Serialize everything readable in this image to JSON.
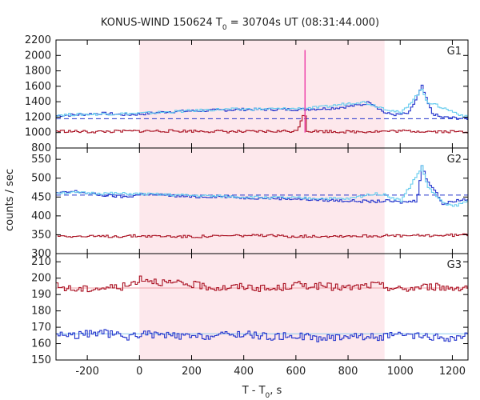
{
  "chart_data": {
    "type": "line",
    "title_main": "KONUS-WIND 150624 T",
    "title_sub": "0",
    "title_rest": " = 30704s UT (08:31:44.000)",
    "xlabel_main": "T - T",
    "xlabel_sub": "0",
    "xlabel_rest": ", s",
    "ylabel": "counts / sec",
    "xlim": [
      -320,
      1260
    ],
    "xticks": [
      -200,
      0,
      200,
      400,
      600,
      800,
      1000,
      1200
    ],
    "xtick_labels": [
      "-200",
      "0",
      "200",
      "400",
      "600",
      "800",
      "1000",
      "1200"
    ],
    "shaded_interval": [
      0,
      940
    ],
    "panels": [
      {
        "name": "G1",
        "ylim": [
          800,
          2200
        ],
        "yticks": [
          800,
          1000,
          1200,
          1400,
          1600,
          1800,
          2000,
          2200
        ],
        "ytick_labels": [
          "800",
          "1000",
          "1200",
          "1400",
          "1600",
          "1800",
          "2000",
          "2200"
        ],
        "background_level": 1180,
        "series": [
          {
            "role": "total",
            "color": "#2233cc",
            "x": [
              -320,
              -250,
              -150,
              -50,
              0,
              100,
              200,
              300,
              400,
              500,
              600,
              700,
              750,
              800,
              850,
              880,
              900,
              940,
              980,
              1030,
              1060,
              1080,
              1100,
              1120,
              1150,
              1200,
              1260
            ],
            "y": [
              1220,
              1230,
              1250,
              1230,
              1240,
              1270,
              1280,
              1290,
              1300,
              1300,
              1300,
              1310,
              1320,
              1340,
              1360,
              1400,
              1350,
              1250,
              1230,
              1250,
              1450,
              1600,
              1400,
              1250,
              1200,
              1190,
              1180
            ]
          },
          {
            "role": "hard",
            "color": "#66ccee",
            "x": [
              -320,
              0,
              300,
              600,
              700,
              800,
              850,
              900,
              1000,
              1080,
              1100,
              1260
            ],
            "y": [
              1230,
              1250,
              1300,
              1310,
              1330,
              1380,
              1400,
              1350,
              1250,
              1560,
              1400,
              1190
            ]
          },
          {
            "role": "soft",
            "color": "#aa1122",
            "x": [
              -320,
              -200,
              0,
              200,
              400,
              600,
              630,
              640,
              800,
              1000,
              1260
            ],
            "y": [
              1020,
              1010,
              1020,
              1020,
              1010,
              1020,
              1280,
              1020,
              1010,
              1020,
              1010
            ]
          },
          {
            "role": "spike",
            "color": "#ee44aa",
            "x": [
              635,
              635
            ],
            "y": [
              1000,
              2070
            ]
          }
        ]
      },
      {
        "name": "G2",
        "ylim": [
          300,
          580
        ],
        "yticks": [
          300,
          350,
          400,
          450,
          500,
          550
        ],
        "ytick_labels": [
          "300",
          "350",
          "400",
          "450",
          "500",
          "550"
        ],
        "background_level": 455,
        "series": [
          {
            "role": "total",
            "color": "#2233cc",
            "x": [
              -320,
              -250,
              -150,
              -50,
              0,
              100,
              200,
              300,
              400,
              500,
              600,
              700,
              800,
              900,
              940,
              1000,
              1060,
              1080,
              1100,
              1130,
              1160,
              1200,
              1260
            ],
            "y": [
              460,
              465,
              455,
              450,
              458,
              455,
              450,
              452,
              448,
              447,
              445,
              442,
              440,
              438,
              440,
              436,
              440,
              535,
              490,
              470,
              430,
              440,
              445
            ]
          },
          {
            "role": "hard",
            "color": "#66ccee",
            "x": [
              -320,
              0,
              400,
              800,
              900,
              940,
              1000,
              1080,
              1100,
              1150,
              1200,
              1260
            ],
            "y": [
              462,
              458,
              450,
              445,
              460,
              455,
              440,
              530,
              480,
              440,
              425,
              440
            ]
          },
          {
            "role": "soft",
            "color": "#aa1122",
            "x": [
              -320,
              -200,
              0,
              200,
              400,
              600,
              800,
              1000,
              1200,
              1260
            ],
            "y": [
              348,
              345,
              347,
              345,
              348,
              346,
              347,
              347,
              349,
              350
            ]
          }
        ]
      },
      {
        "name": "G3",
        "ylim": [
          150,
          215
        ],
        "yticks": [
          150,
          160,
          170,
          180,
          190,
          200,
          210
        ],
        "ytick_labels": [
          "150",
          "160",
          "170",
          "180",
          "190",
          "200",
          "210"
        ],
        "background_levels": [
          194,
          166
        ],
        "series": [
          {
            "role": "upper",
            "color": "#aa1122",
            "x": [
              -320,
              -250,
              -150,
              -50,
              0,
              100,
              200,
              300,
              400,
              500,
              600,
              700,
              800,
              900,
              1000,
              1100,
              1200,
              1260
            ],
            "y": [
              195,
              193,
              194,
              195,
              200,
              197,
              196,
              194,
              195,
              193,
              196,
              195,
              194,
              196,
              193,
              195,
              194,
              195
            ]
          },
          {
            "role": "lower",
            "color": "#2233cc",
            "x": [
              -320,
              -250,
              -150,
              -50,
              0,
              100,
              200,
              300,
              400,
              500,
              600,
              700,
              800,
              900,
              1000,
              1100,
              1200,
              1260
            ],
            "y": [
              166,
              165,
              167,
              164,
              166,
              165,
              164,
              165,
              166,
              164,
              165,
              163,
              165,
              164,
              165,
              164,
              163,
              165
            ]
          }
        ]
      }
    ]
  }
}
